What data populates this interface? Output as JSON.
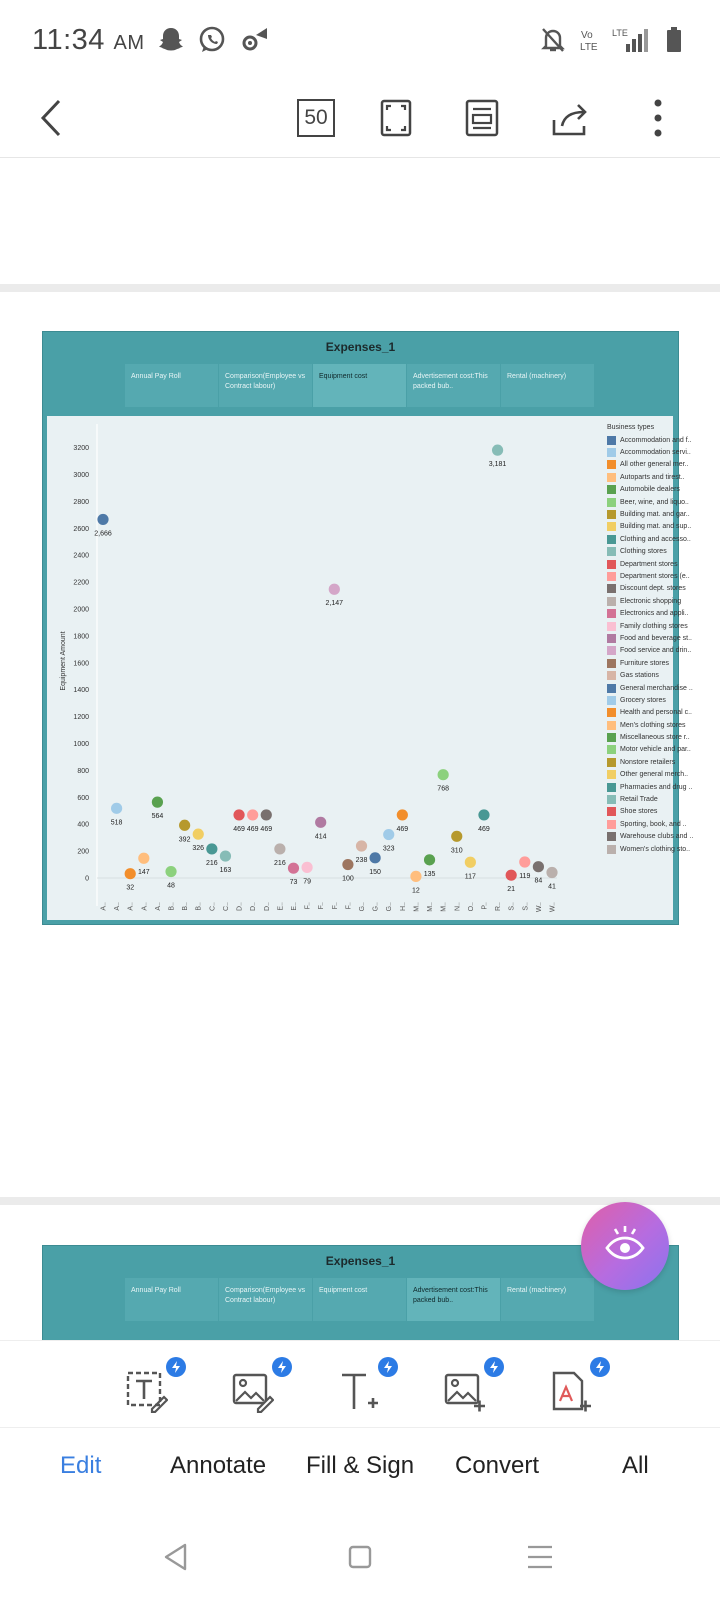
{
  "status": {
    "time": "11:34",
    "ampm": "AM",
    "left_icons": [
      "snapchat-icon",
      "whatsapp-icon",
      "wifi-settings-icon"
    ],
    "right_icons": [
      "mute-icon",
      "volte-icon",
      "lte-signal-icon",
      "battery-icon"
    ],
    "volte_label": "Vo LTE",
    "lte_label": "LTE"
  },
  "toolbar": {
    "back_icon": "back-arrow-icon",
    "page_badge": "50",
    "fullscreen_icon": "fullscreen-icon",
    "reader_icon": "reader-mode-icon",
    "share_icon": "share-icon",
    "more_icon": "more-vertical-icon"
  },
  "dashboard": {
    "title": "Expenses_1",
    "tabs": [
      {
        "label": "Annual Pay Roll"
      },
      {
        "label": "Comparison(Employee vs Contract labour)"
      },
      {
        "label": "Equipment cost"
      },
      {
        "label": "Advertisement cost:This packed bub.."
      },
      {
        "label": "Rental (machinery)"
      }
    ],
    "active_tab_index": 2,
    "second_active_tab_index": 3,
    "legend_title": "Business types",
    "legend": [
      {
        "label": "Accommodation and f..",
        "color": "#4e79a7"
      },
      {
        "label": "Accommodation servi..",
        "color": "#a0cbe8"
      },
      {
        "label": "All other general mer..",
        "color": "#f28e2b"
      },
      {
        "label": "Autoparts and tirest..",
        "color": "#ffbe7d"
      },
      {
        "label": "Automobile dealers",
        "color": "#59a14f"
      },
      {
        "label": "Beer, wine, and liquo..",
        "color": "#8cd17d"
      },
      {
        "label": "Building mat. and gar..",
        "color": "#b6992d"
      },
      {
        "label": "Building mat. and sup..",
        "color": "#f1ce63"
      },
      {
        "label": "Clothing and accesso..",
        "color": "#499894"
      },
      {
        "label": "Clothing stores",
        "color": "#86bcb6"
      },
      {
        "label": "Department stores",
        "color": "#e15759"
      },
      {
        "label": "Department stores (e..",
        "color": "#ff9d9a"
      },
      {
        "label": "Discount dept. stores",
        "color": "#79706e"
      },
      {
        "label": "Electronic shopping",
        "color": "#bab0ac"
      },
      {
        "label": "Electronics and appli..",
        "color": "#d37295"
      },
      {
        "label": "Family clothing stores",
        "color": "#fabfd2"
      },
      {
        "label": "Food and beverage st..",
        "color": "#b07aa1"
      },
      {
        "label": "Food service and drin..",
        "color": "#d4a6c8"
      },
      {
        "label": "Furniture stores",
        "color": "#9d7660"
      },
      {
        "label": "Gas stations",
        "color": "#d7b5a6"
      },
      {
        "label": "General merchandise ..",
        "color": "#4e79a7"
      },
      {
        "label": "Grocery stores",
        "color": "#a0cbe8"
      },
      {
        "label": "Health and personal c..",
        "color": "#f28e2b"
      },
      {
        "label": "Men's clothing stores",
        "color": "#ffbe7d"
      },
      {
        "label": "Miscellaneous store r..",
        "color": "#59a14f"
      },
      {
        "label": "Motor vehicle and par..",
        "color": "#8cd17d"
      },
      {
        "label": "Nonstore retailers",
        "color": "#b6992d"
      },
      {
        "label": "Other general merch..",
        "color": "#f1ce63"
      },
      {
        "label": "Pharmacies and drug ..",
        "color": "#499894"
      },
      {
        "label": "Retail Trade",
        "color": "#86bcb6"
      },
      {
        "label": "Shoe stores",
        "color": "#e15759"
      },
      {
        "label": "Sporting, book, and ..",
        "color": "#ff9d9a"
      },
      {
        "label": "Warehouse clubs and ..",
        "color": "#79706e"
      },
      {
        "label": "Women's clothing sto..",
        "color": "#bab0ac"
      }
    ]
  },
  "chart_data": {
    "type": "scatter",
    "title": "",
    "xlabel": "",
    "ylabel": "Equipment Amount",
    "ylim": [
      -100,
      3300
    ],
    "yticks": [
      0,
      200,
      400,
      600,
      800,
      1000,
      1200,
      1400,
      1600,
      1800,
      2000,
      2200,
      2400,
      2600,
      2800,
      3000,
      3200
    ],
    "grid": false,
    "legend_position": "right",
    "points": [
      {
        "x": "A..",
        "y": 2666,
        "label": "2,666",
        "color": "#4e79a7"
      },
      {
        "x": "A..",
        "y": 518,
        "label": "518",
        "color": "#a0cbe8"
      },
      {
        "x": "A..",
        "y": 32,
        "label": "32",
        "color": "#f28e2b"
      },
      {
        "x": "A..",
        "y": 147,
        "label": "147",
        "color": "#ffbe7d"
      },
      {
        "x": "A..",
        "y": 564,
        "label": "564",
        "color": "#59a14f"
      },
      {
        "x": "B..",
        "y": 48,
        "label": "48",
        "color": "#8cd17d"
      },
      {
        "x": "B..",
        "y": 392,
        "label": "392",
        "color": "#b6992d"
      },
      {
        "x": "B..",
        "y": 326,
        "label": "326",
        "color": "#f1ce63"
      },
      {
        "x": "C..",
        "y": 216,
        "label": "216",
        "color": "#499894"
      },
      {
        "x": "C..",
        "y": 163,
        "label": "163",
        "color": "#86bcb6"
      },
      {
        "x": "D..",
        "y": 469,
        "label": "469",
        "color": "#e15759"
      },
      {
        "x": "D..",
        "y": 469,
        "label": "469",
        "color": "#ff9d9a"
      },
      {
        "x": "D..",
        "y": 469,
        "label": "469",
        "color": "#79706e"
      },
      {
        "x": "E..",
        "y": 216,
        "label": "216",
        "color": "#bab0ac"
      },
      {
        "x": "E..",
        "y": 73,
        "label": "73",
        "color": "#d37295"
      },
      {
        "x": "F..",
        "y": 79,
        "label": "79",
        "color": "#fabfd2"
      },
      {
        "x": "F..",
        "y": 414,
        "label": "414",
        "color": "#b07aa1"
      },
      {
        "x": "F..",
        "y": 2147,
        "label": "2,147",
        "color": "#d4a6c8"
      },
      {
        "x": "F..",
        "y": 100,
        "label": "100",
        "color": "#9d7660"
      },
      {
        "x": "G..",
        "y": 238,
        "label": "238",
        "color": "#d7b5a6"
      },
      {
        "x": "G..",
        "y": 150,
        "label": "150",
        "color": "#4e79a7"
      },
      {
        "x": "G..",
        "y": 323,
        "label": "323",
        "color": "#a0cbe8"
      },
      {
        "x": "H..",
        "y": 469,
        "label": "469",
        "color": "#f28e2b"
      },
      {
        "x": "M..",
        "y": 12,
        "label": "12",
        "color": "#ffbe7d"
      },
      {
        "x": "M..",
        "y": 135,
        "label": "135",
        "color": "#59a14f"
      },
      {
        "x": "M..",
        "y": 768,
        "label": "768",
        "color": "#8cd17d"
      },
      {
        "x": "N..",
        "y": 310,
        "label": "310",
        "color": "#b6992d"
      },
      {
        "x": "O..",
        "y": 117,
        "label": "117",
        "color": "#f1ce63"
      },
      {
        "x": "P..",
        "y": 469,
        "label": "469",
        "color": "#499894"
      },
      {
        "x": "R..",
        "y": 3181,
        "label": "3,181",
        "color": "#86bcb6"
      },
      {
        "x": "S..",
        "y": 21,
        "label": "21",
        "color": "#e15759"
      },
      {
        "x": "S..",
        "y": 119,
        "label": "119",
        "color": "#ff9d9a"
      },
      {
        "x": "W..",
        "y": 84,
        "label": "84",
        "color": "#79706e"
      },
      {
        "x": "W..",
        "y": 41,
        "label": "41",
        "color": "#bab0ac"
      }
    ]
  },
  "bottom_tools": [
    {
      "name": "edit-text-tool",
      "icon": "text-edit-icon"
    },
    {
      "name": "edit-image-tool",
      "icon": "image-edit-icon"
    },
    {
      "name": "add-text-tool",
      "icon": "add-text-icon"
    },
    {
      "name": "add-image-tool",
      "icon": "add-image-icon"
    },
    {
      "name": "add-page-tool",
      "icon": "add-page-icon"
    }
  ],
  "bottom_tabs": [
    {
      "label": "Edit",
      "active": true
    },
    {
      "label": "Annotate",
      "active": false
    },
    {
      "label": "Fill & Sign",
      "active": false
    },
    {
      "label": "Convert",
      "active": false
    },
    {
      "label": "All",
      "active": false
    }
  ],
  "colors": {
    "accent": "#3a7fe0",
    "dashboard_bg": "#4aa0a7",
    "chart_bg": "#e9f1f3",
    "badge": "#2c7be5"
  }
}
